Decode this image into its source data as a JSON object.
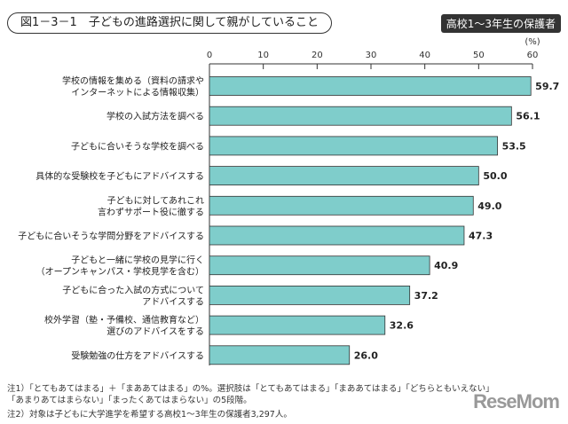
{
  "header": {
    "title": "図1－3－1　子どもの進路選択に関して親がしていること",
    "badge": "高校1～3年生の保護者"
  },
  "chart_data": {
    "type": "bar",
    "orientation": "horizontal",
    "unit_label": "(%)",
    "xlim": [
      0,
      60
    ],
    "ticks": [
      0,
      10,
      20,
      30,
      40,
      50,
      60
    ],
    "grid": false,
    "color": "#7fcdcb",
    "categories": [
      [
        "学校の情報を集める（資料の請求や",
        "インターネットによる情報収集）"
      ],
      [
        "学校の入試方法を調べる"
      ],
      [
        "子どもに合いそうな学校を調べる"
      ],
      [
        "具体的な受験校を子どもにアドバイスする"
      ],
      [
        "子どもに対してあれこれ",
        "言わずサポート役に徹する"
      ],
      [
        "子どもに合いそうな学問分野をアドバイスする"
      ],
      [
        "子どもと一緒に学校の見学に行く",
        "（オープンキャンパス・学校見学を含む）"
      ],
      [
        "子どもに合った入試の方式について",
        "アドバイスする"
      ],
      [
        "校外学習（塾・予備校、通信教育など）",
        "選びのアドバイスをする"
      ],
      [
        "受験勉強の仕方をアドバイスする"
      ]
    ],
    "values": [
      59.7,
      56.1,
      53.5,
      50.0,
      49.0,
      47.3,
      40.9,
      37.2,
      32.6,
      26.0
    ]
  },
  "notes": [
    "注1）「とてもあてはまる」＋「まああてはまる」の%。選択肢は「とてもあてはまる」「まああてはまる」「どちらともいえない」「あまりあてはまらない」「まったくあてはまらない」の5段階。",
    "注2）対象は子どもに大学進学を希望する高校1～3年生の保護者3,297人。"
  ],
  "logo": "ReseMom"
}
